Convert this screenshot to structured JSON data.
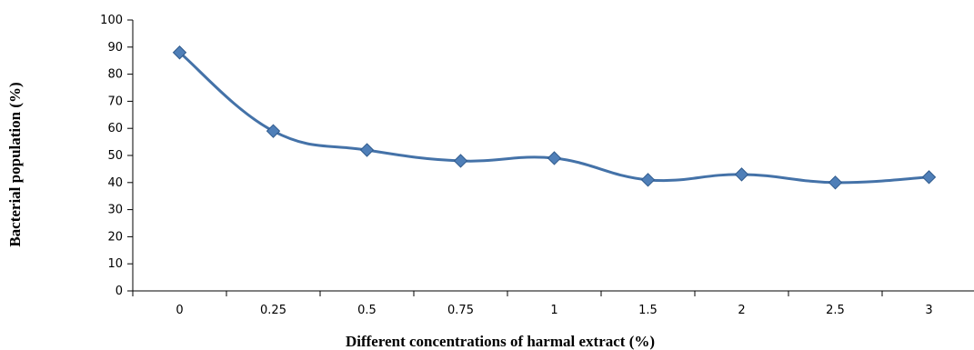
{
  "chart_data": {
    "type": "line",
    "title": "",
    "xlabel": "Different concentrations of harmal extract (%)",
    "ylabel": "Bacterial population (%)",
    "categories": [
      "0",
      "0.25",
      "0.5",
      "0.75",
      "1",
      "1.5",
      "2",
      "2.5",
      "3"
    ],
    "values": [
      88,
      59,
      52,
      48,
      49,
      41,
      43,
      40,
      42
    ],
    "ylim": [
      0,
      100
    ],
    "yticks": [
      "0",
      "10",
      "20",
      "30",
      "40",
      "50",
      "60",
      "70",
      "80",
      "90",
      "100"
    ],
    "grid": false,
    "legend": "none",
    "line_color": "#4472a8",
    "marker_color": "#4f7fb8",
    "marker": "diamond",
    "smooth": true
  }
}
